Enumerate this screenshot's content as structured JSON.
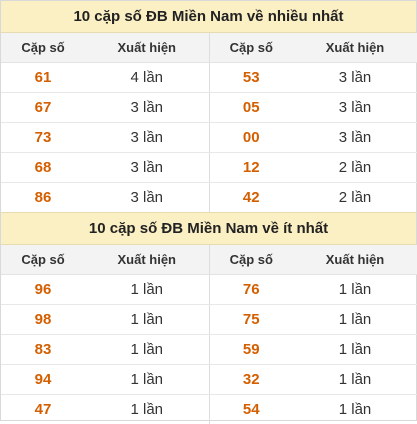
{
  "most": {
    "title": "10 cặp số ĐB Miền Nam về nhiều nhất",
    "headers": [
      "Cặp số",
      "Xuất hiện",
      "Cặp số",
      "Xuất hiện"
    ],
    "rows": [
      [
        "61",
        "4 lần",
        "53",
        "3 lần"
      ],
      [
        "67",
        "3 lần",
        "05",
        "3 lần"
      ],
      [
        "73",
        "3 lần",
        "00",
        "3 lần"
      ],
      [
        "68",
        "3 lần",
        "12",
        "2 lần"
      ],
      [
        "86",
        "3 lần",
        "42",
        "2 lần"
      ]
    ]
  },
  "least": {
    "title": "10 cặp số ĐB Miền Nam về ít nhất",
    "headers": [
      "Cặp số",
      "Xuất hiện",
      "Cặp số",
      "Xuất hiện"
    ],
    "rows": [
      [
        "96",
        "1 lần",
        "76",
        "1 lần"
      ],
      [
        "98",
        "1 lần",
        "75",
        "1 lần"
      ],
      [
        "83",
        "1 lần",
        "59",
        "1 lần"
      ],
      [
        "94",
        "1 lần",
        "32",
        "1 lần"
      ],
      [
        "47",
        "1 lần",
        "54",
        "1 lần"
      ]
    ]
  }
}
